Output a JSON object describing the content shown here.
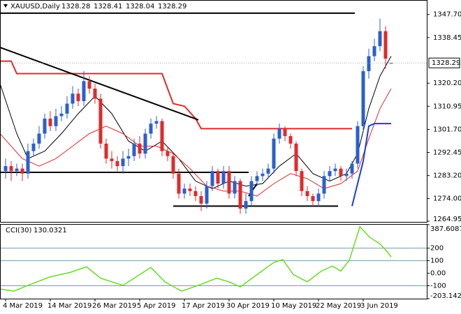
{
  "chart_data": {
    "type": "candlestick",
    "title": "XAUUSD,Daily",
    "up_color": "#2b5fd0",
    "down_color": "#e02a2a",
    "open": [
      1285,
      1287,
      1285,
      1286,
      1284,
      1293,
      1296,
      1300,
      1306,
      1303,
      1307,
      1308,
      1312,
      1316,
      1313,
      1321,
      1318,
      1314,
      1296,
      1290,
      1289,
      1287,
      1290,
      1291,
      1296,
      1292,
      1300,
      1304,
      1305,
      1293,
      1291,
      1284,
      1276,
      1278,
      1277,
      1275,
      1272,
      1279,
      1285,
      1280,
      1285,
      1276,
      1281,
      1270,
      1273,
      1281,
      1283,
      1284,
      1286,
      1298,
      1302,
      1299,
      1296,
      1285,
      1277,
      1275,
      1273,
      1276,
      1283,
      1285,
      1286,
      1283,
      1284,
      1288,
      1303,
      1325,
      1331,
      1335,
      1341,
      1328.28
    ],
    "high": [
      1290,
      1289,
      1288,
      1288,
      1296,
      1298,
      1303,
      1308,
      1309,
      1310,
      1311,
      1315,
      1319,
      1318,
      1325,
      1323,
      1320,
      1316,
      1298,
      1293,
      1291,
      1293,
      1294,
      1298,
      1299,
      1302,
      1306,
      1307,
      1306,
      1295,
      1292,
      1286,
      1280,
      1280,
      1279,
      1277,
      1281,
      1287,
      1286,
      1287,
      1287,
      1283,
      1282,
      1276,
      1283,
      1285,
      1286,
      1288,
      1300,
      1304,
      1303,
      1300,
      1297,
      1286,
      1279,
      1276,
      1278,
      1285,
      1287,
      1288,
      1287,
      1286,
      1289,
      1305,
      1327,
      1334,
      1338,
      1346,
      1343,
      1328.41
    ],
    "low": [
      1282,
      1281,
      1283,
      1281,
      1282,
      1291,
      1294,
      1298,
      1301,
      1301,
      1305,
      1306,
      1310,
      1311,
      1311,
      1316,
      1312,
      1294,
      1288,
      1286,
      1285,
      1284,
      1287,
      1289,
      1290,
      1290,
      1298,
      1302,
      1291,
      1289,
      1282,
      1274,
      1274,
      1275,
      1273,
      1269,
      1270,
      1277,
      1278,
      1278,
      1274,
      1274,
      1268,
      1268,
      1271,
      1279,
      1281,
      1282,
      1284,
      1296,
      1297,
      1294,
      1283,
      1275,
      1273,
      1271,
      1271,
      1274,
      1281,
      1283,
      1281,
      1281,
      1282,
      1286,
      1301,
      1322,
      1329,
      1333,
      1326,
      1328.04
    ],
    "close": [
      1287,
      1285,
      1286,
      1284,
      1293,
      1296,
      1300,
      1306,
      1303,
      1307,
      1308,
      1312,
      1316,
      1313,
      1321,
      1318,
      1314,
      1296,
      1290,
      1289,
      1287,
      1290,
      1291,
      1296,
      1292,
      1300,
      1304,
      1305,
      1293,
      1291,
      1284,
      1276,
      1278,
      1277,
      1275,
      1272,
      1279,
      1285,
      1280,
      1285,
      1276,
      1281,
      1270,
      1273,
      1281,
      1283,
      1284,
      1286,
      1298,
      1302,
      1299,
      1296,
      1285,
      1277,
      1275,
      1273,
      1276,
      1283,
      1285,
      1286,
      1283,
      1284,
      1288,
      1303,
      1325,
      1331,
      1335,
      1341,
      1330,
      1328.29
    ],
    "ylim": [
      1264.95,
      1353.2
    ],
    "yticks": [
      {
        "value": 1347.7,
        "label": "1347.70"
      },
      1338.45,
      {
        "value": 1320.2,
        "label": "1320.20"
      },
      1310.95,
      {
        "value": 1301.7,
        "label": "1301.70"
      },
      1292.45,
      {
        "value": 1283.2,
        "label": "1283.20"
      },
      {
        "value": 1274,
        "label": "1274.00"
      },
      1264.95
    ],
    "xticks": [
      {
        "value": 0,
        "label": "4 Mar 2019"
      },
      {
        "value": 8,
        "label": "14 Mar 2019"
      },
      {
        "value": 16,
        "label": "26 Mar 2019"
      },
      {
        "value": 24,
        "label": "5 Apr 2019"
      },
      {
        "value": 32,
        "label": "17 Apr 2019"
      },
      {
        "value": 40,
        "label": "30 Apr 2019"
      },
      {
        "value": 48,
        "label": "10 May 2019"
      },
      {
        "value": 56,
        "label": "22 May 2019"
      },
      {
        "value": 64,
        "label": "3 Jun 2019"
      }
    ],
    "overlays": [
      {
        "color": "#000000",
        "width": 1,
        "x": [
          -1,
          2,
          4,
          7,
          10,
          13,
          16,
          19,
          22,
          25,
          28,
          31,
          34,
          37,
          40,
          43,
          46,
          49,
          52,
          55,
          58,
          61,
          63,
          65,
          67,
          69
        ],
        "values": [
          1320,
          1300,
          1290,
          1293,
          1300,
          1308,
          1315,
          1308,
          1297,
          1293,
          1297,
          1290,
          1281,
          1278,
          1281,
          1279,
          1280,
          1287,
          1292,
          1284,
          1281,
          1284,
          1292,
          1310,
          1323,
          1331
        ]
      },
      {
        "color": "#e02a2a",
        "width": 1,
        "x": [
          -1,
          3,
          6,
          9,
          12,
          15,
          18,
          21,
          24,
          27,
          30,
          33,
          36,
          39,
          42,
          45,
          48,
          51,
          54,
          57,
          60,
          63,
          65,
          67,
          69
        ],
        "values": [
          1300,
          1290,
          1287,
          1290,
          1295,
          1300,
          1303,
          1300,
          1295,
          1295,
          1292,
          1286,
          1279,
          1277,
          1277,
          1275,
          1280,
          1284,
          1282,
          1278,
          1280,
          1285,
          1298,
          1310,
          1318
        ]
      },
      {
        "color": "#e02a2a",
        "width": 2,
        "x": [
          -1,
          1,
          2,
          28,
          30,
          32,
          34,
          35,
          62
        ],
        "values": [
          1329,
          1329,
          1324,
          1324,
          1312,
          1311,
          1306,
          1302,
          1302
        ]
      },
      {
        "color": "#1a3fd8",
        "width": 2,
        "x": [
          62,
          64,
          65,
          66,
          69
        ],
        "values": [
          1271,
          1289,
          1303,
          1304,
          1304
        ]
      }
    ],
    "lines": [
      {
        "color": "#000000",
        "width": 2,
        "x": [
          -1,
          62.5
        ],
        "values": [
          1348.2,
          1348.2
        ]
      },
      {
        "color": "#000000",
        "width": 2,
        "x": [
          -1,
          34.5
        ],
        "values": [
          1334.5,
          1305.5
        ]
      },
      {
        "color": "#000000",
        "width": 2,
        "x": [
          -1,
          43.5
        ],
        "values": [
          1284.5,
          1284.5
        ]
      },
      {
        "color": "#000000",
        "width": 2,
        "x": [
          30,
          59.5
        ],
        "values": [
          1271,
          1271
        ]
      },
      {
        "color": "#000000",
        "width": 2,
        "x": [
          43.5,
          45
        ],
        "values": [
          1275,
          1280
        ]
      }
    ],
    "cci": {
      "label": "CCI(30)",
      "color": "#66dd22",
      "x": [
        -1,
        1.5,
        4,
        8,
        11.5,
        14.5,
        17,
        21,
        24,
        26,
        28.5,
        31.5,
        34.5,
        37.8,
        40,
        42,
        45,
        48,
        49.6,
        51.5,
        54,
        56.5,
        58.5,
        60,
        61.5,
        63.4,
        65.2,
        67,
        68.4,
        69
      ],
      "values": [
        -126,
        -143,
        -97,
        -29,
        6,
        51,
        -40,
        -97,
        -11,
        46,
        -69,
        -143,
        -97,
        -40,
        -69,
        -109,
        -11,
        86,
        109,
        -11,
        -69,
        17,
        57,
        17,
        103,
        371,
        286,
        234,
        166,
        130.0321
      ],
      "ylim": [
        -203.1423,
        387.6087
      ],
      "yticks": [
        387.6087,
        200,
        100,
        {
          "value": 0,
          "label": "0.00"
        },
        -100,
        -203.1423
      ],
      "levels": [
        200,
        100,
        -100
      ]
    }
  }
}
